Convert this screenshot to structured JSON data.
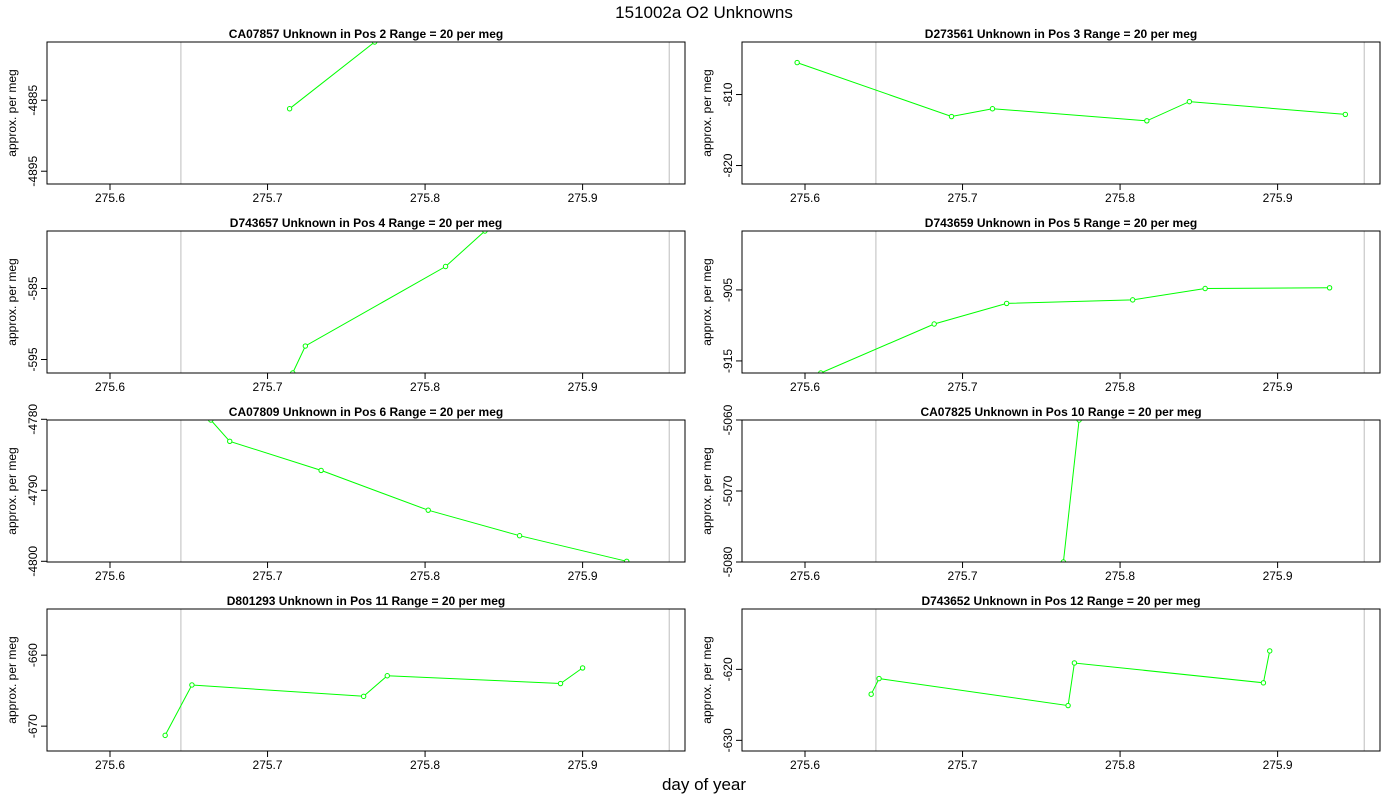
{
  "figure": {
    "title": "151002a  O2 Unknowns",
    "xlabel": "day of year"
  },
  "style": {
    "line_color": "#00ff00",
    "ref_line_color": "#c8c8c8",
    "frame_color": "#000000"
  },
  "chart_data": [
    {
      "type": "line",
      "title": "CA07857    Unknown in Pos 2          Range = 20 per meg",
      "ylabel": "approx. per meg",
      "xlim": [
        275.56,
        275.965
      ],
      "ylim": [
        -4896.8,
        -4876.8
      ],
      "xticks": [
        275.6,
        275.7,
        275.8,
        275.9
      ],
      "yticks": [
        -4885,
        -4895
      ],
      "vlines": [
        275.645,
        275.955
      ],
      "series": [
        {
          "x": [
            275.714,
            275.768
          ],
          "y": [
            -4886.2,
            -4876.8
          ]
        }
      ]
    },
    {
      "type": "line",
      "title": "D273561    Unknown in Pos 3          Range = 20 per meg",
      "ylabel": "approx. per meg",
      "xlim": [
        275.56,
        275.965
      ],
      "ylim": [
        -822.6,
        -802.6
      ],
      "xticks": [
        275.6,
        275.7,
        275.8,
        275.9
      ],
      "yticks": [
        -810,
        -820
      ],
      "vlines": [
        275.645,
        275.955
      ],
      "series": [
        {
          "x": [
            275.595,
            275.693,
            275.719,
            275.817,
            275.844,
            275.943
          ],
          "y": [
            -805.5,
            -813.1,
            -812.0,
            -813.7,
            -811.0,
            -812.8
          ]
        }
      ]
    },
    {
      "type": "line",
      "title": "D743657    Unknown in Pos 4          Range = 20 per meg",
      "ylabel": "approx. per meg",
      "xlim": [
        275.56,
        275.965
      ],
      "ylim": [
        -596.9,
        -576.9
      ],
      "xticks": [
        275.6,
        275.7,
        275.8,
        275.9
      ],
      "yticks": [
        -585,
        -595
      ],
      "vlines": [
        275.645,
        275.955
      ],
      "series": [
        {
          "x": [
            275.716,
            275.724,
            275.813,
            275.838
          ],
          "y": [
            -596.9,
            -593.1,
            -581.9,
            -576.9
          ]
        }
      ]
    },
    {
      "type": "line",
      "title": "D743659    Unknown in Pos 5          Range = 20 per meg",
      "ylabel": "approx. per meg",
      "xlim": [
        275.56,
        275.965
      ],
      "ylim": [
        -916.7,
        -896.7
      ],
      "xticks": [
        275.6,
        275.7,
        275.8,
        275.9
      ],
      "yticks": [
        -905,
        -915
      ],
      "vlines": [
        275.645,
        275.955
      ],
      "series": [
        {
          "x": [
            275.61,
            275.682,
            275.728,
            275.808,
            275.854,
            275.933
          ],
          "y": [
            -916.7,
            -909.8,
            -906.9,
            -906.4,
            -904.8,
            -904.7
          ]
        }
      ]
    },
    {
      "type": "line",
      "title": "CA07809    Unknown in Pos 6          Range = 20 per meg",
      "ylabel": "approx. per meg",
      "xlim": [
        275.56,
        275.965
      ],
      "ylim": [
        -4800.1,
        -4780.1
      ],
      "xticks": [
        275.6,
        275.7,
        275.8,
        275.9
      ],
      "yticks": [
        -4780,
        -4790,
        -4800
      ],
      "vlines": [
        275.645,
        275.955
      ],
      "series": [
        {
          "x": [
            275.664,
            275.676,
            275.734,
            275.802,
            275.86,
            275.928
          ],
          "y": [
            -4780.1,
            -4783.1,
            -4787.2,
            -4792.8,
            -4796.4,
            -4800.0
          ]
        }
      ]
    },
    {
      "type": "line",
      "title": "CA07825    Unknown in Pos 10          Range = 20 per meg",
      "ylabel": "approx. per meg",
      "xlim": [
        275.56,
        275.965
      ],
      "ylim": [
        -5080,
        -5060
      ],
      "xticks": [
        275.6,
        275.7,
        275.8,
        275.9
      ],
      "yticks": [
        -5060,
        -5070,
        -5080
      ],
      "vlines": [
        275.645,
        275.955
      ],
      "series": [
        {
          "x": [
            275.764,
            275.774
          ],
          "y": [
            -5080,
            -5060
          ]
        }
      ]
    },
    {
      "type": "line",
      "title": "D801293    Unknown in Pos 11          Range = 20 per meg",
      "ylabel": "approx. per meg",
      "xlim": [
        275.56,
        275.965
      ],
      "ylim": [
        -673.5,
        -653.5
      ],
      "xticks": [
        275.6,
        275.7,
        275.8,
        275.9
      ],
      "yticks": [
        -660,
        -670
      ],
      "vlines": [
        275.645,
        275.955
      ],
      "series": [
        {
          "x": [
            275.635,
            275.652,
            275.761,
            275.776,
            275.886,
            275.9
          ],
          "y": [
            -671.3,
            -664.2,
            -665.8,
            -662.9,
            -664.0,
            -661.8
          ]
        }
      ]
    },
    {
      "type": "line",
      "title": "D743652    Unknown in Pos 12          Range = 20 per meg",
      "ylabel": "approx. per meg",
      "xlim": [
        275.56,
        275.965
      ],
      "ylim": [
        -631.5,
        -611.5
      ],
      "xticks": [
        275.6,
        275.7,
        275.8,
        275.9
      ],
      "yticks": [
        -620,
        -630
      ],
      "vlines": [
        275.645,
        275.955
      ],
      "series": [
        {
          "x": [
            275.642,
            275.647,
            275.767,
            275.771,
            275.891,
            275.895
          ],
          "y": [
            -623.5,
            -621.3,
            -625.1,
            -619.1,
            -621.9,
            -617.4
          ]
        }
      ]
    }
  ]
}
